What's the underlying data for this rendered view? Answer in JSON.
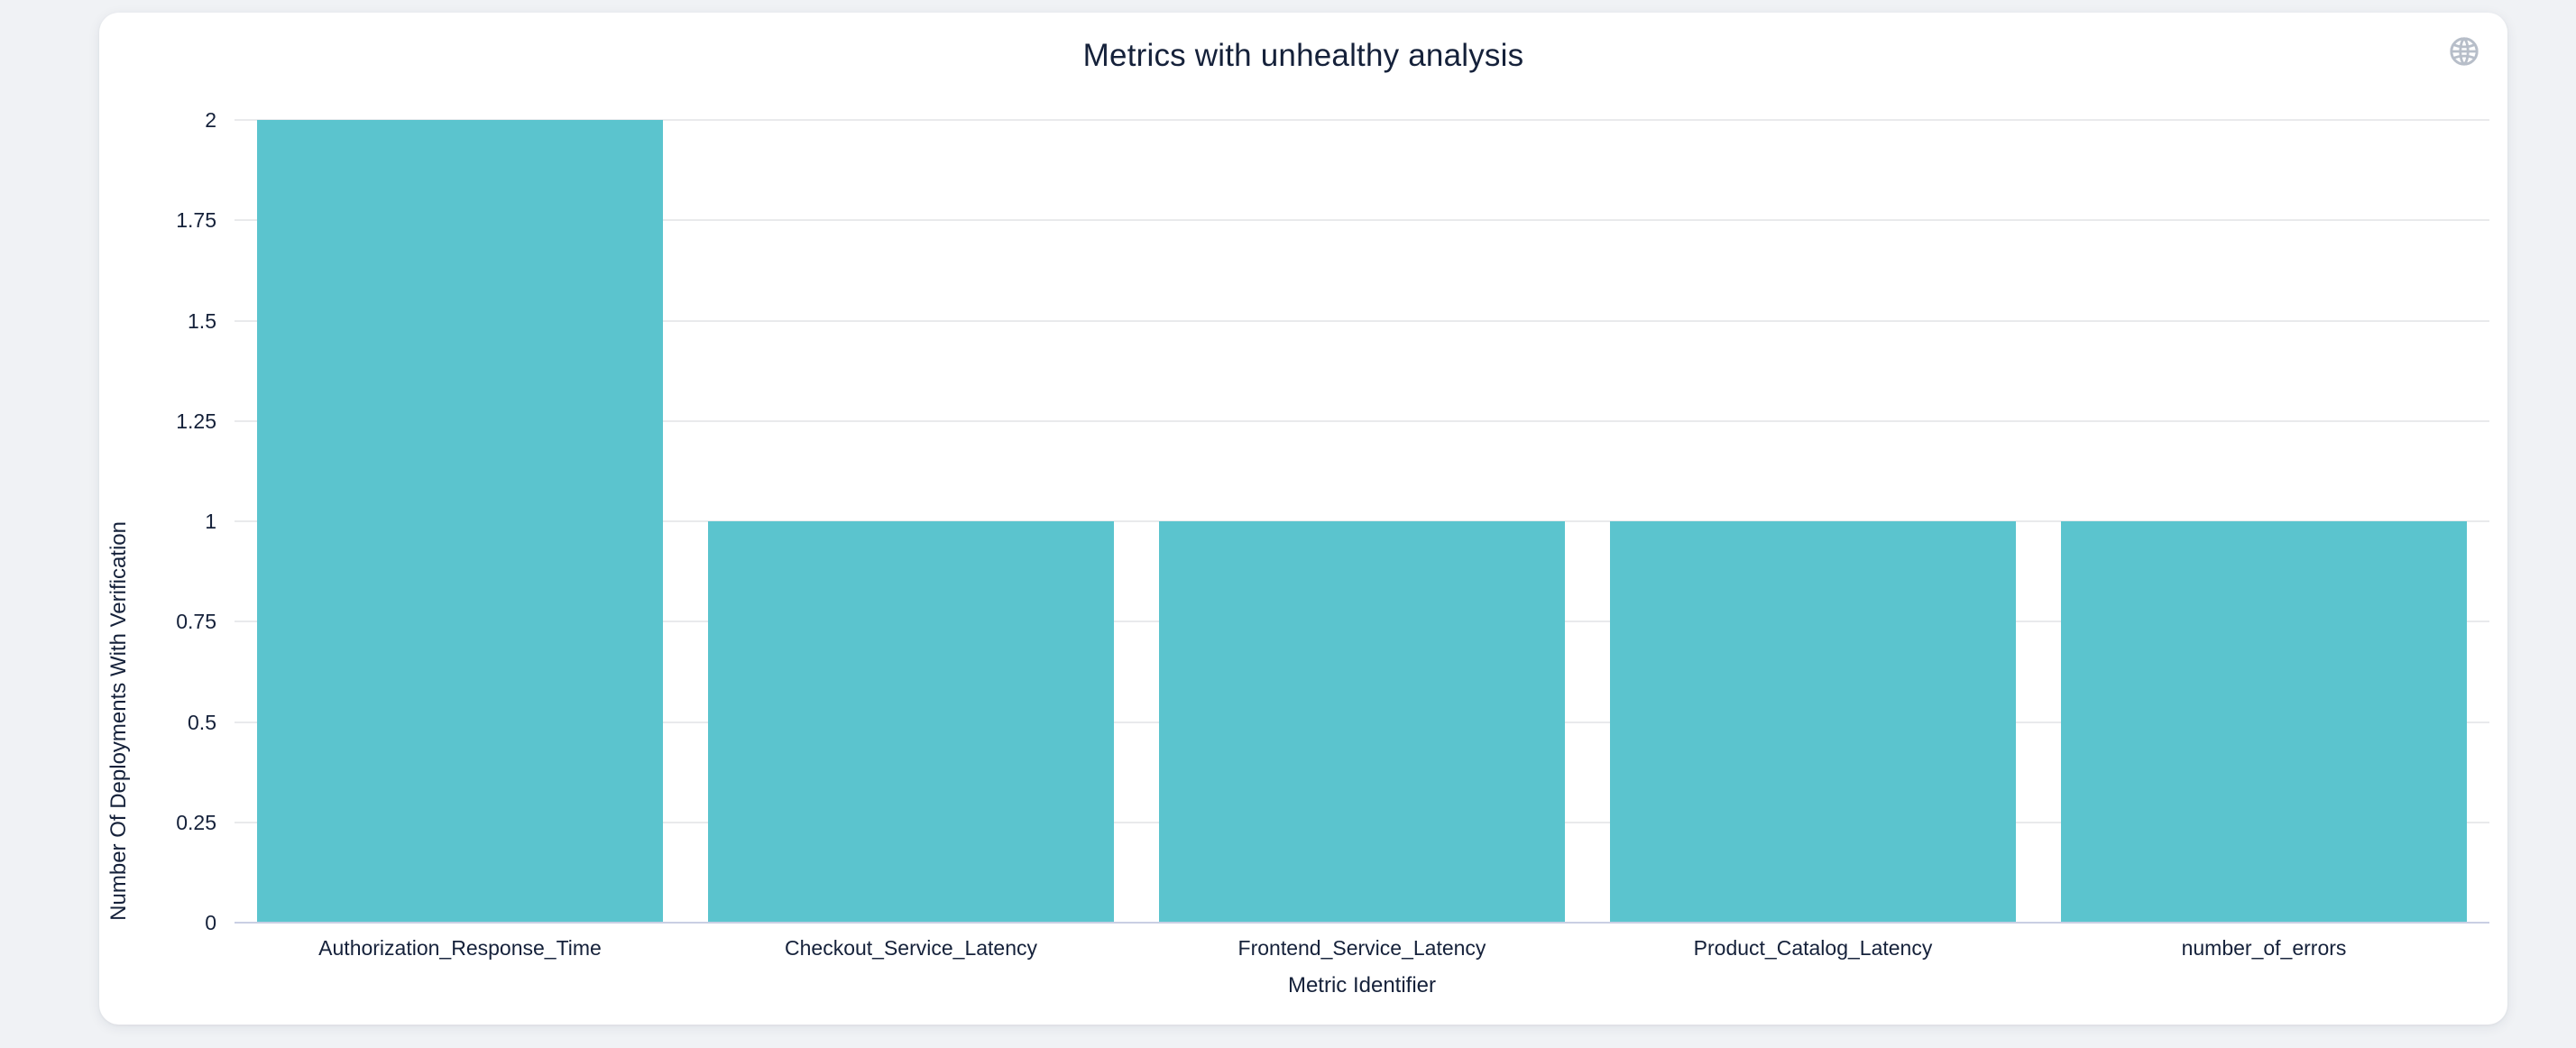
{
  "chart_data": {
    "type": "bar",
    "title": "Metrics with unhealthy analysis",
    "categories": [
      "Authorization_Response_Time",
      "Checkout_Service_Latency",
      "Frontend_Service_Latency",
      "Product_Catalog_Latency",
      "number_of_errors"
    ],
    "values": [
      2,
      1,
      1,
      1,
      1
    ],
    "xlabel": "Metric Identifier",
    "ylabel": "Number Of Deployments With Verification",
    "ylim": [
      0,
      2
    ],
    "yticks": [
      0,
      0.25,
      0.5,
      0.75,
      1,
      1.25,
      1.5,
      1.75,
      2
    ],
    "ytick_labels": [
      "0",
      "0.25",
      "0.5",
      "0.75",
      "1",
      "1.25",
      "1.5",
      "1.75",
      "2"
    ],
    "bar_width_fraction": 0.9,
    "grid": true,
    "legend": false
  },
  "colors": {
    "bar": "#5bc4ce",
    "gridline": "#e9eaec",
    "axis_line": "#c9cfe3",
    "text": "#15213a",
    "card_background": "#ffffff",
    "page_background": "#f0f2f5",
    "globe_icon": "#b7bec9"
  },
  "header": {
    "globe_icon": "globe-icon"
  }
}
